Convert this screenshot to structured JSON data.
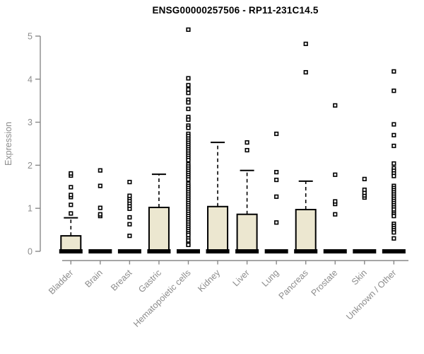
{
  "chart_data": {
    "type": "box",
    "title": "ENSG00000257506 - RP11-231C14.5",
    "ylabel": "Expression",
    "xlabel": "",
    "ylim": [
      0,
      5
    ],
    "yticks": [
      0,
      1,
      2,
      3,
      4,
      5
    ],
    "grid": false,
    "legend": "none",
    "categories": [
      "Bladder",
      "Brain",
      "Breast",
      "Gastric",
      "Hematopoietic cells",
      "Kidney",
      "Liver",
      "Lung",
      "Pancreas",
      "Prostate",
      "Skin",
      "Unknown / Other"
    ],
    "series": [
      {
        "category": "Bladder",
        "q1": 0,
        "median": 0,
        "q3": 0.36,
        "whisker_low": 0,
        "whisker_high": 0.78,
        "outliers": [
          0.88,
          1.08,
          1.26,
          1.31,
          1.49,
          1.76,
          1.81
        ]
      },
      {
        "category": "Brain",
        "q1": 0,
        "median": 0,
        "q3": 0,
        "whisker_low": 0,
        "whisker_high": 0,
        "outliers": [
          0.82,
          0.86,
          1.01,
          1.52,
          1.88
        ]
      },
      {
        "category": "Breast",
        "q1": 0,
        "median": 0,
        "q3": 0,
        "whisker_low": 0,
        "whisker_high": 0,
        "outliers": [
          0.36,
          0.63,
          0.79,
          0.99,
          1.06,
          1.12,
          1.18,
          1.24,
          1.29,
          1.61
        ]
      },
      {
        "category": "Gastric",
        "q1": 0,
        "median": 0,
        "q3": 1.02,
        "whisker_low": 0,
        "whisker_high": 1.79,
        "outliers": []
      },
      {
        "category": "Hematopoietic cells",
        "q1": 0,
        "median": 0,
        "q3": 0,
        "whisker_low": 0,
        "whisker_high": 0,
        "outliers": [
          5.15,
          4.02,
          3.86,
          3.76,
          3.68,
          3.52,
          3.46,
          3.31,
          3.12,
          3.06,
          2.92,
          2.87,
          2.73,
          2.68,
          2.62,
          2.57,
          2.52,
          2.47,
          2.42,
          2.37,
          2.32,
          2.27,
          2.22,
          2.17,
          2.12,
          2.02,
          1.97,
          1.92,
          1.87,
          1.82,
          1.77,
          1.72,
          1.67,
          1.57,
          1.52,
          1.47,
          1.42,
          1.37,
          1.32,
          1.27,
          1.22,
          1.17,
          1.12,
          1.07,
          1.02,
          0.97,
          0.92,
          0.87,
          0.82,
          0.77,
          0.72,
          0.67,
          0.62,
          0.57,
          0.52,
          0.47,
          0.42,
          0.38,
          0.3,
          0.25,
          0.18,
          0.15
        ]
      },
      {
        "category": "Kidney",
        "q1": 0,
        "median": 0,
        "q3": 1.04,
        "whisker_low": 0,
        "whisker_high": 2.53,
        "outliers": []
      },
      {
        "category": "Liver",
        "q1": 0,
        "median": 0,
        "q3": 0.86,
        "whisker_low": 0,
        "whisker_high": 1.88,
        "outliers": [
          2.35,
          2.53
        ]
      },
      {
        "category": "Lung",
        "q1": 0,
        "median": 0,
        "q3": 0,
        "whisker_low": 0,
        "whisker_high": 0,
        "outliers": [
          0.67,
          1.27,
          1.66,
          1.84,
          2.73
        ]
      },
      {
        "category": "Pancreas",
        "q1": 0,
        "median": 0,
        "q3": 0.97,
        "whisker_low": 0,
        "whisker_high": 1.63,
        "outliers": [
          4.16,
          4.82
        ]
      },
      {
        "category": "Prostate",
        "q1": 0,
        "median": 0,
        "q3": 0,
        "whisker_low": 0,
        "whisker_high": 0,
        "outliers": [
          0.86,
          1.1,
          1.16,
          1.78,
          3.39
        ]
      },
      {
        "category": "Skin",
        "q1": 0,
        "median": 0,
        "q3": 0,
        "whisker_low": 0,
        "whisker_high": 0,
        "outliers": [
          1.25,
          1.3,
          1.36,
          1.43,
          1.68
        ]
      },
      {
        "category": "Unknown / Other",
        "q1": 0,
        "median": 0,
        "q3": 0,
        "whisker_low": 0,
        "whisker_high": 0,
        "outliers": [
          4.18,
          3.73,
          2.95,
          2.7,
          2.45,
          2.04,
          1.93,
          1.87,
          1.81,
          1.75,
          1.52,
          1.47,
          1.42,
          1.37,
          1.32,
          1.27,
          1.22,
          1.17,
          1.12,
          1.07,
          1.02,
          0.97,
          0.9,
          0.86,
          0.82,
          0.64,
          0.59,
          0.54,
          0.49,
          0.44,
          0.3
        ]
      }
    ],
    "colors": {
      "box_fill": "#ece7d0",
      "box_stroke": "#000000",
      "median": "#000000",
      "outlier_stroke": "#000000",
      "outlier_fill": "#ffffff",
      "axis_line": "#888888",
      "axis_text": "#8c8c8c",
      "title_text": "#000000"
    }
  }
}
